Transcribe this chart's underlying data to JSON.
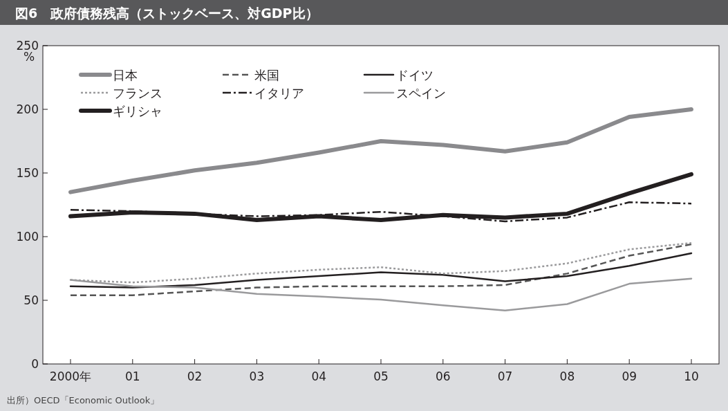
{
  "chart_data": {
    "type": "line",
    "title": "図6　政府債務残高（ストックベース、対GDP比）",
    "ylabel": "%",
    "categories": [
      "2000年",
      "01",
      "02",
      "03",
      "04",
      "05",
      "06",
      "07",
      "08",
      "09",
      "10"
    ],
    "ylim": [
      0,
      250
    ],
    "yticks": [
      0,
      50,
      100,
      150,
      200,
      250
    ],
    "grid": false,
    "legend": "top left",
    "series": [
      {
        "name": "日本",
        "color": "#8a8a8d",
        "line_style": "solid",
        "values": [
          135,
          144,
          152,
          158,
          166,
          175,
          172,
          167,
          174,
          194,
          200
        ]
      },
      {
        "name": "米国",
        "color": "#555555",
        "line_style": "dashed",
        "values": [
          54,
          54,
          57,
          60,
          61,
          61,
          61,
          62,
          71,
          85,
          94
        ]
      },
      {
        "name": "ドイツ",
        "color": "#231f20",
        "line_style": "solid",
        "values": [
          61,
          60,
          62,
          66,
          69,
          72,
          70,
          65,
          69,
          77,
          87
        ]
      },
      {
        "name": "フランス",
        "color": "#9a9a9c",
        "line_style": "dotted",
        "values": [
          66,
          64,
          67,
          71,
          74,
          76,
          71,
          73,
          79,
          90,
          95
        ]
      },
      {
        "name": "イタリア",
        "color": "#231f20",
        "line_style": "dashdot",
        "values": [
          121,
          120,
          118,
          116,
          117,
          119.5,
          116,
          112,
          115,
          127,
          126
        ]
      },
      {
        "name": "スペイン",
        "color": "#9a9a9c",
        "line_style": "solid",
        "values": [
          66,
          61,
          60,
          55,
          53,
          50.5,
          46,
          42,
          47,
          63,
          67
        ]
      },
      {
        "name": "ギリシャ",
        "color": "#231f20",
        "line_style": "solid",
        "values": [
          116,
          119,
          118,
          113,
          116,
          113,
          117,
          115,
          118,
          134,
          149
        ]
      }
    ],
    "annotations": [
      "出所）OECD「Economic Outlook」"
    ]
  }
}
